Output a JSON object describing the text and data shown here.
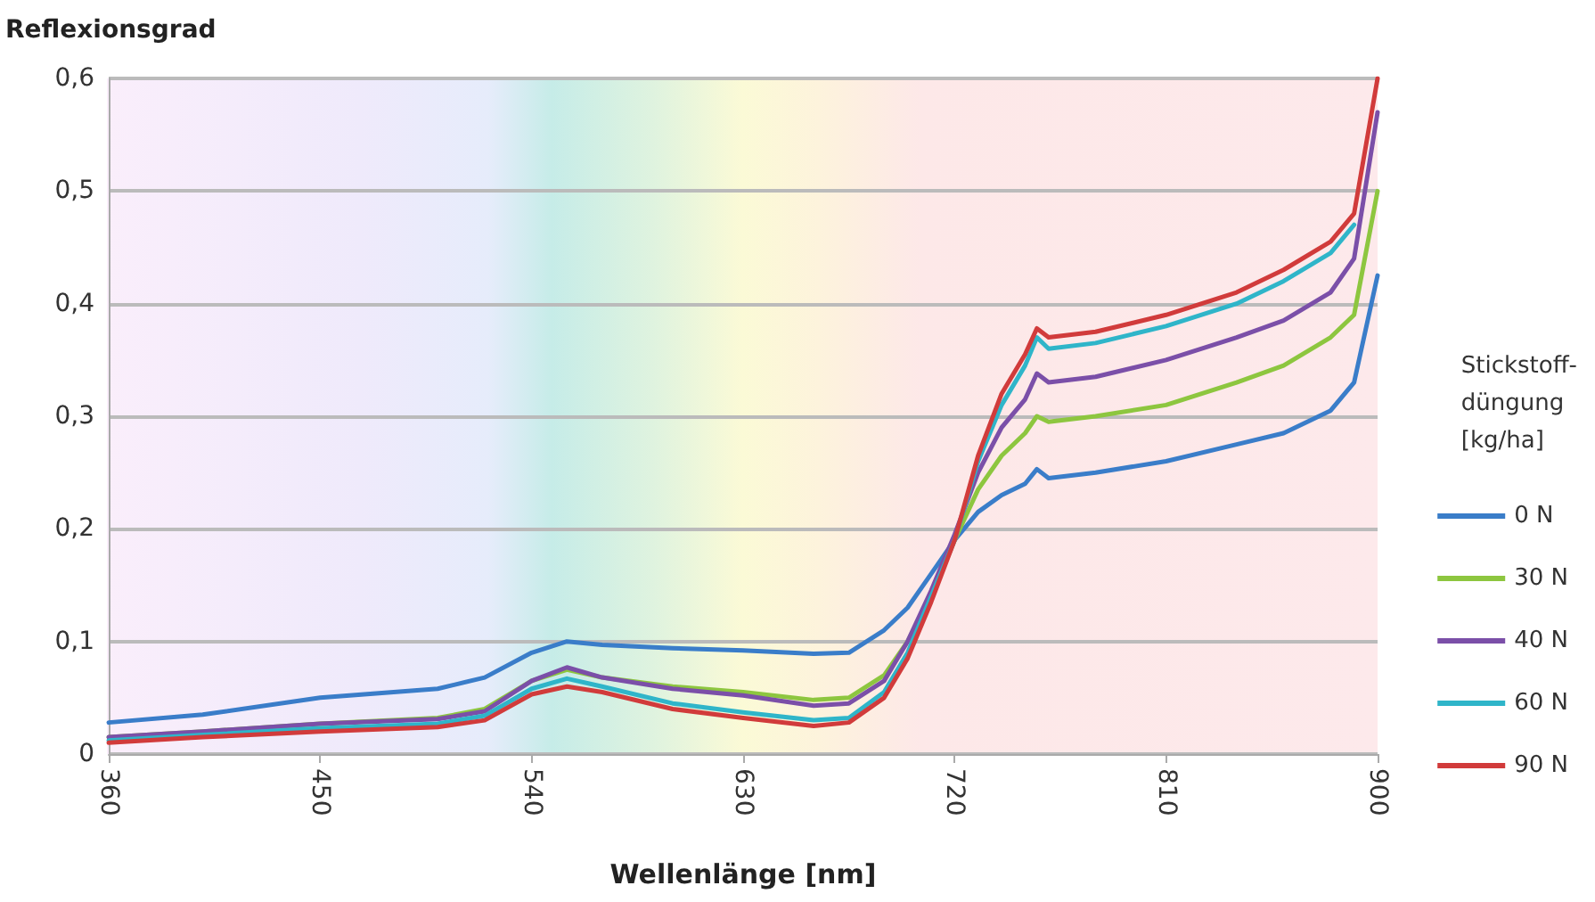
{
  "chart_data": {
    "type": "line",
    "xlabel": "Wellenlänge [nm]",
    "ylabel": "Reflexionsgrad",
    "legend_title": "Stickstoff-\ndüngung\n[kg/ha]",
    "x": [
      360,
      400,
      450,
      500,
      520,
      540,
      555,
      570,
      600,
      630,
      660,
      675,
      690,
      700,
      710,
      720,
      730,
      740,
      750,
      755,
      760,
      780,
      810,
      840,
      860,
      880,
      890,
      900
    ],
    "series": [
      {
        "name": "0 N",
        "color": "#3a7dc9",
        "values": [
          0.028,
          0.035,
          0.05,
          0.058,
          0.068,
          0.09,
          0.1,
          0.097,
          0.094,
          0.092,
          0.089,
          0.09,
          0.11,
          0.13,
          0.16,
          0.19,
          0.215,
          0.23,
          0.24,
          0.253,
          0.245,
          0.25,
          0.26,
          0.275,
          0.285,
          0.305,
          0.33,
          0.425
        ]
      },
      {
        "name": "30 N",
        "color": "#8dc63f",
        "values": [
          0.015,
          0.02,
          0.027,
          0.032,
          0.04,
          0.065,
          0.075,
          0.068,
          0.06,
          0.055,
          0.048,
          0.05,
          0.07,
          0.1,
          0.14,
          0.19,
          0.235,
          0.265,
          0.285,
          0.3,
          0.295,
          0.3,
          0.31,
          0.33,
          0.345,
          0.37,
          0.39,
          0.5
        ]
      },
      {
        "name": "40 N",
        "color": "#7b4fa8",
        "values": [
          0.015,
          0.02,
          0.027,
          0.031,
          0.038,
          0.065,
          0.077,
          0.068,
          0.058,
          0.052,
          0.043,
          0.045,
          0.065,
          0.1,
          0.145,
          0.195,
          0.25,
          0.29,
          0.315,
          0.338,
          0.33,
          0.335,
          0.35,
          0.37,
          0.385,
          0.41,
          0.44,
          0.57
        ]
      },
      {
        "name": "60 N",
        "color": "#2fb5c9",
        "values": [
          0.012,
          0.017,
          0.023,
          0.027,
          0.034,
          0.058,
          0.067,
          0.06,
          0.045,
          0.037,
          0.03,
          0.032,
          0.055,
          0.09,
          0.14,
          0.19,
          0.26,
          0.31,
          0.345,
          0.37,
          0.36,
          0.365,
          0.38,
          0.4,
          0.42,
          0.445,
          0.47,
          null
        ]
      },
      {
        "name": "90 N",
        "color": "#d13b3b",
        "values": [
          0.01,
          0.015,
          0.02,
          0.024,
          0.03,
          0.053,
          0.06,
          0.055,
          0.04,
          0.032,
          0.025,
          0.028,
          0.05,
          0.085,
          0.135,
          0.19,
          0.265,
          0.32,
          0.355,
          0.378,
          0.37,
          0.375,
          0.39,
          0.41,
          0.43,
          0.455,
          0.48,
          0.6
        ]
      }
    ],
    "xlim": [
      360,
      900
    ],
    "xticks": [
      360,
      450,
      540,
      630,
      720,
      810,
      900
    ],
    "ylim": [
      0,
      0.6
    ],
    "yticks": [
      0,
      {
        "value": 0.1,
        "label": "0,1"
      },
      {
        "value": 0.2,
        "label": "0,2"
      },
      {
        "value": 0.3,
        "label": "0,3"
      },
      {
        "value": 0.4,
        "label": "0,4"
      },
      {
        "value": 0.5,
        "label": "0,5"
      },
      {
        "value": 0.6,
        "label": "0,6"
      }
    ],
    "grid": "y",
    "legend": "right",
    "marker": "none",
    "line_style": "solid"
  }
}
